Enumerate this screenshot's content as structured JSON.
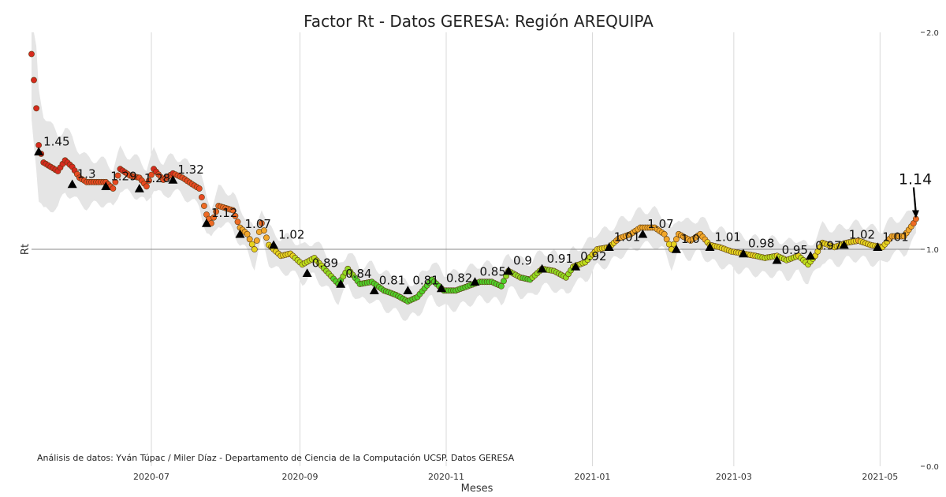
{
  "chart_data": {
    "type": "scatter",
    "title": "Factor Rt - Datos GERESA: Región AREQUIPA",
    "xlabel": "Meses",
    "ylabel": "Rt",
    "ylim": [
      0.0,
      2.0
    ],
    "xlim": [
      "2020-05-12",
      "2021-05-18"
    ],
    "reference_line": 1.0,
    "grid": "vertical",
    "yticks": [
      {
        "value": 0.0,
        "label": "0.0"
      },
      {
        "value": 1.0,
        "label": "1.0"
      },
      {
        "value": 2.0,
        "label": "2.0"
      }
    ],
    "xticks": [
      {
        "date": "2020-07-01",
        "label": "2020-07"
      },
      {
        "date": "2020-09-01",
        "label": "2020-09"
      },
      {
        "date": "2020-11-01",
        "label": "2020-11"
      },
      {
        "date": "2021-01-01",
        "label": "2021-01"
      },
      {
        "date": "2021-03-01",
        "label": "2021-03"
      },
      {
        "date": "2021-05-01",
        "label": "2021-05"
      }
    ],
    "series_keypoints": [
      [
        "2020-05-12",
        1.9
      ],
      [
        "2020-05-13",
        1.78
      ],
      [
        "2020-05-14",
        1.65
      ],
      [
        "2020-05-15",
        1.48
      ],
      [
        "2020-05-17",
        1.4
      ],
      [
        "2020-05-20",
        1.38
      ],
      [
        "2020-05-23",
        1.36
      ],
      [
        "2020-05-26",
        1.41
      ],
      [
        "2020-05-29",
        1.38
      ],
      [
        "2020-06-01",
        1.33
      ],
      [
        "2020-06-04",
        1.31
      ],
      [
        "2020-06-08",
        1.31
      ],
      [
        "2020-06-12",
        1.31
      ],
      [
        "2020-06-15",
        1.28
      ],
      [
        "2020-06-18",
        1.37
      ],
      [
        "2020-06-22",
        1.34
      ],
      [
        "2020-06-26",
        1.33
      ],
      [
        "2020-06-29",
        1.29
      ],
      [
        "2020-07-02",
        1.37
      ],
      [
        "2020-07-06",
        1.32
      ],
      [
        "2020-07-10",
        1.35
      ],
      [
        "2020-07-14",
        1.33
      ],
      [
        "2020-07-18",
        1.3
      ],
      [
        "2020-07-21",
        1.28
      ],
      [
        "2020-07-24",
        1.16
      ],
      [
        "2020-07-26",
        1.12
      ],
      [
        "2020-07-29",
        1.2
      ],
      [
        "2020-08-01",
        1.19
      ],
      [
        "2020-08-04",
        1.18
      ],
      [
        "2020-08-07",
        1.1
      ],
      [
        "2020-08-10",
        1.07
      ],
      [
        "2020-08-13",
        1.0
      ],
      [
        "2020-08-16",
        1.12
      ],
      [
        "2020-08-19",
        1.02
      ],
      [
        "2020-08-24",
        0.97
      ],
      [
        "2020-08-28",
        0.98
      ],
      [
        "2020-09-02",
        0.93
      ],
      [
        "2020-09-07",
        0.96
      ],
      [
        "2020-09-12",
        0.9
      ],
      [
        "2020-09-17",
        0.84
      ],
      [
        "2020-09-21",
        0.91
      ],
      [
        "2020-09-26",
        0.84
      ],
      [
        "2020-10-01",
        0.85
      ],
      [
        "2020-10-06",
        0.81
      ],
      [
        "2020-10-11",
        0.79
      ],
      [
        "2020-10-16",
        0.76
      ],
      [
        "2020-10-20",
        0.78
      ],
      [
        "2020-10-26",
        0.86
      ],
      [
        "2020-10-31",
        0.81
      ],
      [
        "2020-11-05",
        0.81
      ],
      [
        "2020-11-10",
        0.83
      ],
      [
        "2020-11-15",
        0.85
      ],
      [
        "2020-11-20",
        0.85
      ],
      [
        "2020-11-24",
        0.83
      ],
      [
        "2020-11-27",
        0.9
      ],
      [
        "2020-12-02",
        0.87
      ],
      [
        "2020-12-06",
        0.86
      ],
      [
        "2020-12-11",
        0.91
      ],
      [
        "2020-12-16",
        0.9
      ],
      [
        "2020-12-21",
        0.87
      ],
      [
        "2020-12-24",
        0.92
      ],
      [
        "2020-12-29",
        0.94
      ],
      [
        "2021-01-03",
        1.0
      ],
      [
        "2021-01-08",
        1.01
      ],
      [
        "2021-01-12",
        1.05
      ],
      [
        "2021-01-17",
        1.07
      ],
      [
        "2021-01-21",
        1.1
      ],
      [
        "2021-01-27",
        1.1
      ],
      [
        "2021-01-31",
        1.07
      ],
      [
        "2021-02-03",
        1.0
      ],
      [
        "2021-02-06",
        1.07
      ],
      [
        "2021-02-11",
        1.04
      ],
      [
        "2021-02-15",
        1.07
      ],
      [
        "2021-02-19",
        1.02
      ],
      [
        "2021-02-23",
        1.01
      ],
      [
        "2021-02-28",
        0.99
      ],
      [
        "2021-03-05",
        0.98
      ],
      [
        "2021-03-10",
        0.97
      ],
      [
        "2021-03-14",
        0.96
      ],
      [
        "2021-03-19",
        0.97
      ],
      [
        "2021-03-23",
        0.95
      ],
      [
        "2021-03-28",
        0.97
      ],
      [
        "2021-04-01",
        0.93
      ],
      [
        "2021-04-04",
        0.97
      ],
      [
        "2021-04-07",
        1.03
      ],
      [
        "2021-04-12",
        1.01
      ],
      [
        "2021-04-17",
        1.03
      ],
      [
        "2021-04-22",
        1.04
      ],
      [
        "2021-04-27",
        1.02
      ],
      [
        "2021-05-02",
        1.01
      ],
      [
        "2021-05-06",
        1.06
      ],
      [
        "2021-05-11",
        1.06
      ],
      [
        "2021-05-15",
        1.12
      ],
      [
        "2021-05-16",
        1.14
      ]
    ],
    "annotations": [
      {
        "date": "2020-05-15",
        "value": 1.45,
        "label": "1.45"
      },
      {
        "date": "2020-05-29",
        "value": 1.3,
        "label": "1.3"
      },
      {
        "date": "2020-06-12",
        "value": 1.29,
        "label": "1.29"
      },
      {
        "date": "2020-06-26",
        "value": 1.28,
        "label": "1.28"
      },
      {
        "date": "2020-07-10",
        "value": 1.32,
        "label": "1.32"
      },
      {
        "date": "2020-07-24",
        "value": 1.12,
        "label": "1.12"
      },
      {
        "date": "2020-08-07",
        "value": 1.07,
        "label": "1.07"
      },
      {
        "date": "2020-08-21",
        "value": 1.02,
        "label": "1.02"
      },
      {
        "date": "2020-09-04",
        "value": 0.89,
        "label": "0.89"
      },
      {
        "date": "2020-09-18",
        "value": 0.84,
        "label": "0.84"
      },
      {
        "date": "2020-10-02",
        "value": 0.81,
        "label": "0.81"
      },
      {
        "date": "2020-10-16",
        "value": 0.81,
        "label": "0.81"
      },
      {
        "date": "2020-10-30",
        "value": 0.82,
        "label": "0.82"
      },
      {
        "date": "2020-11-13",
        "value": 0.85,
        "label": "0.85"
      },
      {
        "date": "2020-11-27",
        "value": 0.9,
        "label": "0.9"
      },
      {
        "date": "2020-12-11",
        "value": 0.91,
        "label": "0.91"
      },
      {
        "date": "2020-12-25",
        "value": 0.92,
        "label": "0.92"
      },
      {
        "date": "2021-01-08",
        "value": 1.01,
        "label": "1.01"
      },
      {
        "date": "2021-01-22",
        "value": 1.07,
        "label": "1.07"
      },
      {
        "date": "2021-02-05",
        "value": 1.0,
        "label": "1.0"
      },
      {
        "date": "2021-02-19",
        "value": 1.01,
        "label": "1.01"
      },
      {
        "date": "2021-03-05",
        "value": 0.98,
        "label": "0.98"
      },
      {
        "date": "2021-03-19",
        "value": 0.95,
        "label": "0.95"
      },
      {
        "date": "2021-04-02",
        "value": 0.97,
        "label": "0.97"
      },
      {
        "date": "2021-04-16",
        "value": 1.02,
        "label": "1.02"
      },
      {
        "date": "2021-04-30",
        "value": 1.01,
        "label": "1.01"
      }
    ],
    "last_value": {
      "date": "2021-05-16",
      "value": 1.14,
      "label": "1.14"
    },
    "footnote": "Análisis de datos: Yván Túpac / Miler Díaz - Departamento de Ciencia de la Computación UCSP. Datos GERESA",
    "colors": {
      "high": "#d62a1e",
      "mid_high": "#ee6a24",
      "mid": "#f2a72a",
      "near_one": "#e6d31e",
      "low": "#4fd12a",
      "band": "#e5e5e5",
      "marker": "#000000",
      "reference": "#888888",
      "grid": "#d8d8d8"
    }
  }
}
